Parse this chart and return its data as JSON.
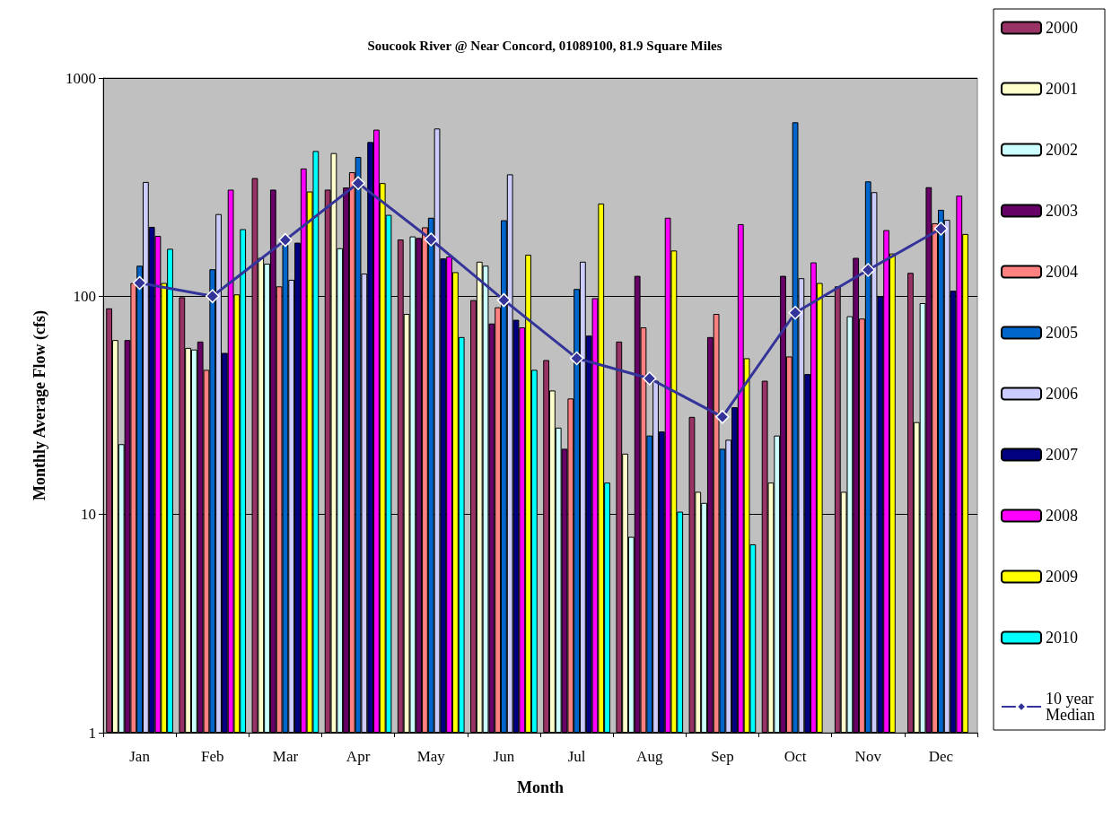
{
  "chart_data": {
    "type": "bar",
    "title": "Soucook River @ Near Concord, 01089100, 81.9 Square Miles",
    "xlabel": "Month",
    "ylabel": "Monthly Average Flow (cfs)",
    "categories": [
      "Jan",
      "Feb",
      "Mar",
      "Apr",
      "May",
      "Jun",
      "Jul",
      "Aug",
      "Sep",
      "Oct",
      "Nov",
      "Dec"
    ],
    "series": [
      {
        "name": "2000",
        "color": "#993366",
        "values": [
          88,
          99,
          348,
          308,
          182,
          96,
          51,
          62,
          28,
          41,
          111,
          128
        ]
      },
      {
        "name": "2001",
        "color": "#ffffcc",
        "values": [
          63,
          58,
          150,
          453,
          83,
          144,
          37,
          19,
          12.7,
          14,
          12.7,
          26.5
        ]
      },
      {
        "name": "2002",
        "color": "#ccffff",
        "values": [
          21,
          57,
          141,
          166,
          188,
          138,
          25,
          7.9,
          11.3,
          23,
          81,
          93
        ]
      },
      {
        "name": "2003",
        "color": "#660066",
        "values": [
          63,
          62,
          308,
          315,
          185,
          75,
          20,
          124,
          65,
          124,
          150,
          316
        ]
      },
      {
        "name": "2004",
        "color": "#ff8080",
        "values": [
          115,
          46,
          111,
          370,
          207,
          89,
          34,
          72,
          83,
          53,
          79,
          216
        ]
      },
      {
        "name": "2005",
        "color": "#0066cc",
        "values": [
          138,
          133,
          172,
          435,
          229,
          223,
          108,
          23,
          20,
          627,
          336,
          249
        ]
      },
      {
        "name": "2006",
        "color": "#ccccff",
        "values": [
          334,
          238,
          119,
          127,
          587,
          362,
          144,
          41,
          22,
          121,
          300,
          224
        ]
      },
      {
        "name": "2007",
        "color": "#000080",
        "values": [
          208,
          55,
          176,
          509,
          149,
          78,
          66,
          24,
          31,
          44,
          100,
          106
        ]
      },
      {
        "name": "2008",
        "color": "#ff00ff",
        "values": [
          189,
          308,
          385,
          580,
          152,
          72,
          98,
          229,
          214,
          143,
          201,
          289
        ]
      },
      {
        "name": "2009",
        "color": "#ffff00",
        "values": [
          115,
          102,
          302,
          330,
          129,
          155,
          266,
          162,
          52,
          115,
          157,
          193
        ]
      },
      {
        "name": "2010",
        "color": "#00ffff",
        "values": [
          165,
          203,
          463,
          236,
          65,
          46,
          14,
          10.3,
          7.3,
          null,
          null,
          null
        ]
      },
      {
        "name": "10 year Median",
        "type": "line",
        "color": "#333399",
        "marker": "diamond",
        "line_style": "solid",
        "values": [
          115,
          100,
          181,
          330,
          182,
          96,
          52,
          42,
          28,
          84,
          132,
          204
        ]
      }
    ],
    "log": true,
    "ylim": [
      1,
      1000
    ],
    "yticks": [
      1,
      10,
      100,
      1000
    ],
    "grid": "y",
    "legend": "right"
  }
}
